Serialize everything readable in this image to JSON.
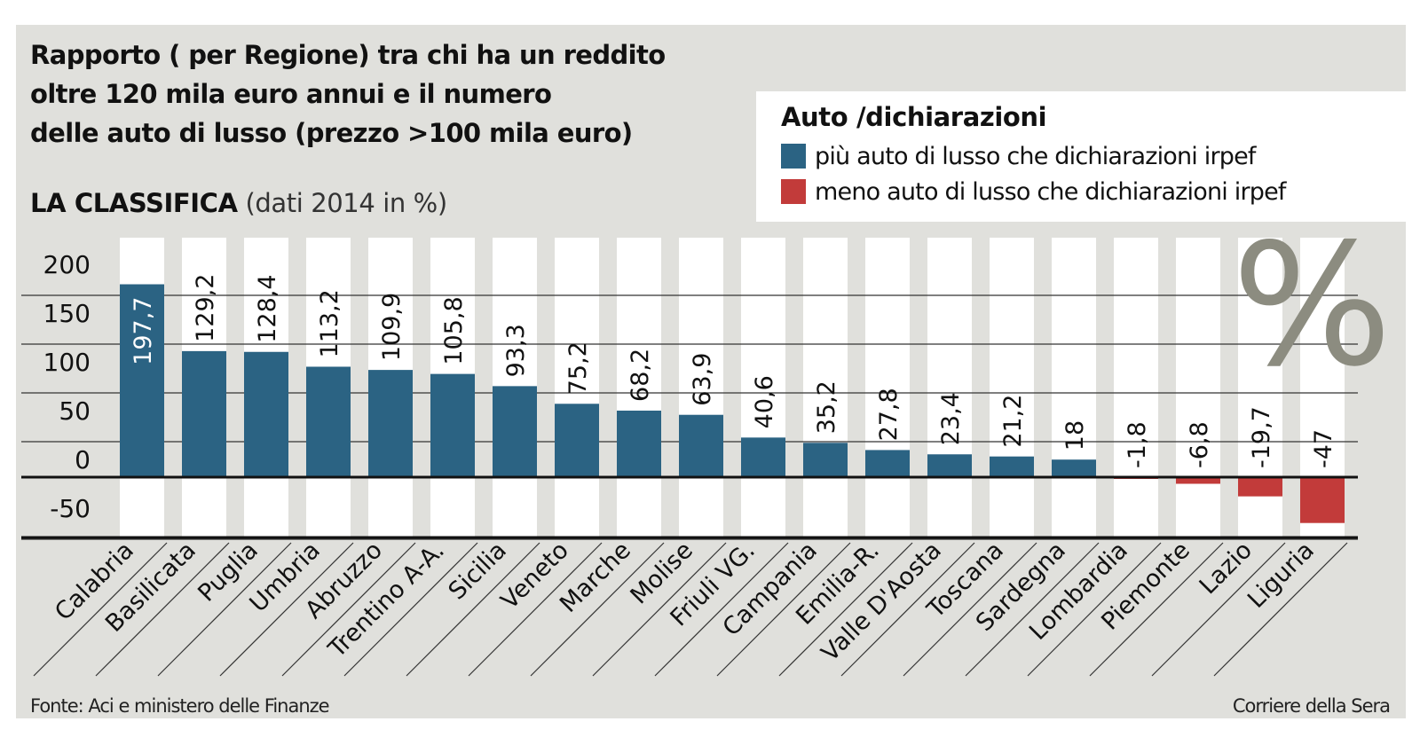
{
  "title_lines": [
    "Rapporto ( per Regione) tra chi ha un reddito",
    "oltre 120 mila euro annui e il numero",
    "delle auto di lusso (prezzo >100 mila euro)"
  ],
  "subtitle": {
    "strong": "LA CLASSIFICA",
    "light": "(dati 2014 in %)"
  },
  "legend": {
    "title": "Auto /dichiarazioni",
    "items": [
      {
        "label": "più auto di lusso che dichiarazioni irpef",
        "color": "#2b6383"
      },
      {
        "label": "meno auto di lusso che dichiarazioni irpef",
        "color": "#c23b3a"
      }
    ]
  },
  "big_symbol": "%",
  "footer": {
    "source": "Fonte: Aci e ministero delle Finanze",
    "publisher": "Corriere della Sera"
  },
  "chart_data": {
    "type": "bar",
    "title": "Rapporto ( per Regione) tra chi ha un reddito oltre 120 mila euro annui e il numero delle auto di lusso (prezzo >100 mila euro)",
    "subtitle": "LA CLASSIFICA (dati 2014 in %)",
    "categories": [
      "Calabria",
      "Basilicata",
      "Puglia",
      "Umbria",
      "Abruzzo",
      "Trentino A-A.",
      "Sicilia",
      "Veneto",
      "Marche",
      "Molise",
      "Friuli VG.",
      "Campania",
      "Emilia-R.",
      "Valle D'Aosta",
      "Toscana",
      "Sardegna",
      "Lombardia",
      "Piemonte",
      "Lazio",
      "Liguria"
    ],
    "values": [
      197.7,
      129.2,
      128.4,
      113.2,
      109.9,
      105.8,
      93.3,
      75.2,
      68.2,
      63.9,
      40.6,
      35.2,
      27.8,
      23.4,
      21.2,
      18,
      -1.8,
      -6.8,
      -19.7,
      -47
    ],
    "value_labels": [
      "197,7",
      "129,2",
      "128,4",
      "113,2",
      "109,9",
      "105,8",
      "93,3",
      "75,2",
      "68,2",
      "63,9",
      "40,6",
      "35,2",
      "27,8",
      "23,4",
      "21,2",
      "18",
      "-1,8",
      "-6,8",
      "-19,7",
      "-47"
    ],
    "yticks": [
      "200",
      "150",
      "100",
      "50",
      "0",
      "-50"
    ],
    "ylim": [
      -60,
      200
    ],
    "positive_color": "#2b6383",
    "negative_color": "#c23b3a",
    "legend_position": "top-right",
    "grid": true
  }
}
